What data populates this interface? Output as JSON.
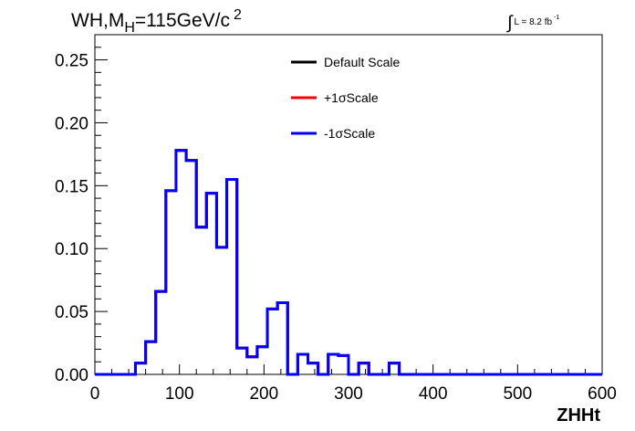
{
  "title": {
    "process": "WH,M",
    "subscript": "H",
    "mass": "=115GeV/c",
    "superscript": "2"
  },
  "luminosity": {
    "symbol": "∫",
    "text": "L = 8.2 fb",
    "superscript": "-1"
  },
  "colors": {
    "default": "#000000",
    "plus": "#ff0000",
    "minus": "#0000ff"
  },
  "chart_data": {
    "type": "line",
    "style": "step-histogram",
    "xlabel": "ZHHt",
    "ylabel": "",
    "xlim": [
      0,
      600
    ],
    "ylim": [
      0,
      0.27
    ],
    "xticks": [
      "0",
      "100",
      "200",
      "300",
      "400",
      "500",
      "600"
    ],
    "yticks": [
      "0.00",
      "0.05",
      "0.10",
      "0.15",
      "0.20",
      "0.25"
    ],
    "grid": false,
    "legend_position": "top-center",
    "bin_width": 12,
    "x": [
      0,
      12,
      24,
      36,
      48,
      60,
      72,
      84,
      96,
      108,
      120,
      132,
      144,
      156,
      168,
      180,
      192,
      204,
      216,
      228,
      240,
      252,
      264,
      276,
      288,
      300,
      312,
      324,
      336,
      348,
      360,
      372,
      384,
      396,
      408,
      420,
      432,
      444,
      456,
      468,
      480,
      492,
      504,
      516,
      528,
      540,
      552,
      564,
      576,
      588
    ],
    "series": [
      {
        "name": "Default Scale",
        "color": "#000000",
        "values": [
          0,
          0,
          0,
          0,
          0.009,
          0.026,
          0.066,
          0.146,
          0.178,
          0.17,
          0.117,
          0.144,
          0.101,
          0.155,
          0.021,
          0.014,
          0.022,
          0.052,
          0.057,
          0,
          0.016,
          0.009,
          0,
          0.016,
          0.015,
          0,
          0.009,
          0,
          0,
          0.009,
          0,
          0,
          0,
          0,
          0,
          0,
          0,
          0,
          0,
          0,
          0,
          0,
          0,
          0,
          0,
          0,
          0,
          0,
          0,
          0
        ]
      },
      {
        "name": "+1σScale",
        "color": "#ff0000",
        "values": [
          0,
          0,
          0,
          0,
          0.009,
          0.026,
          0.066,
          0.146,
          0.178,
          0.17,
          0.117,
          0.144,
          0.101,
          0.155,
          0.021,
          0.014,
          0.022,
          0.052,
          0.057,
          0,
          0.016,
          0.009,
          0,
          0.016,
          0.015,
          0,
          0.009,
          0,
          0,
          0.009,
          0,
          0,
          0,
          0,
          0,
          0,
          0,
          0,
          0,
          0,
          0,
          0,
          0,
          0,
          0,
          0,
          0,
          0,
          0,
          0
        ]
      },
      {
        "name": "-1σScale",
        "color": "#0000ff",
        "values": [
          0,
          0,
          0,
          0,
          0.009,
          0.026,
          0.066,
          0.146,
          0.178,
          0.17,
          0.117,
          0.144,
          0.101,
          0.155,
          0.021,
          0.014,
          0.022,
          0.052,
          0.057,
          0,
          0.016,
          0.009,
          0,
          0.016,
          0.015,
          0,
          0.009,
          0,
          0,
          0.009,
          0,
          0,
          0,
          0,
          0,
          0,
          0,
          0,
          0,
          0,
          0,
          0,
          0,
          0,
          0,
          0,
          0,
          0,
          0,
          0
        ]
      }
    ]
  }
}
